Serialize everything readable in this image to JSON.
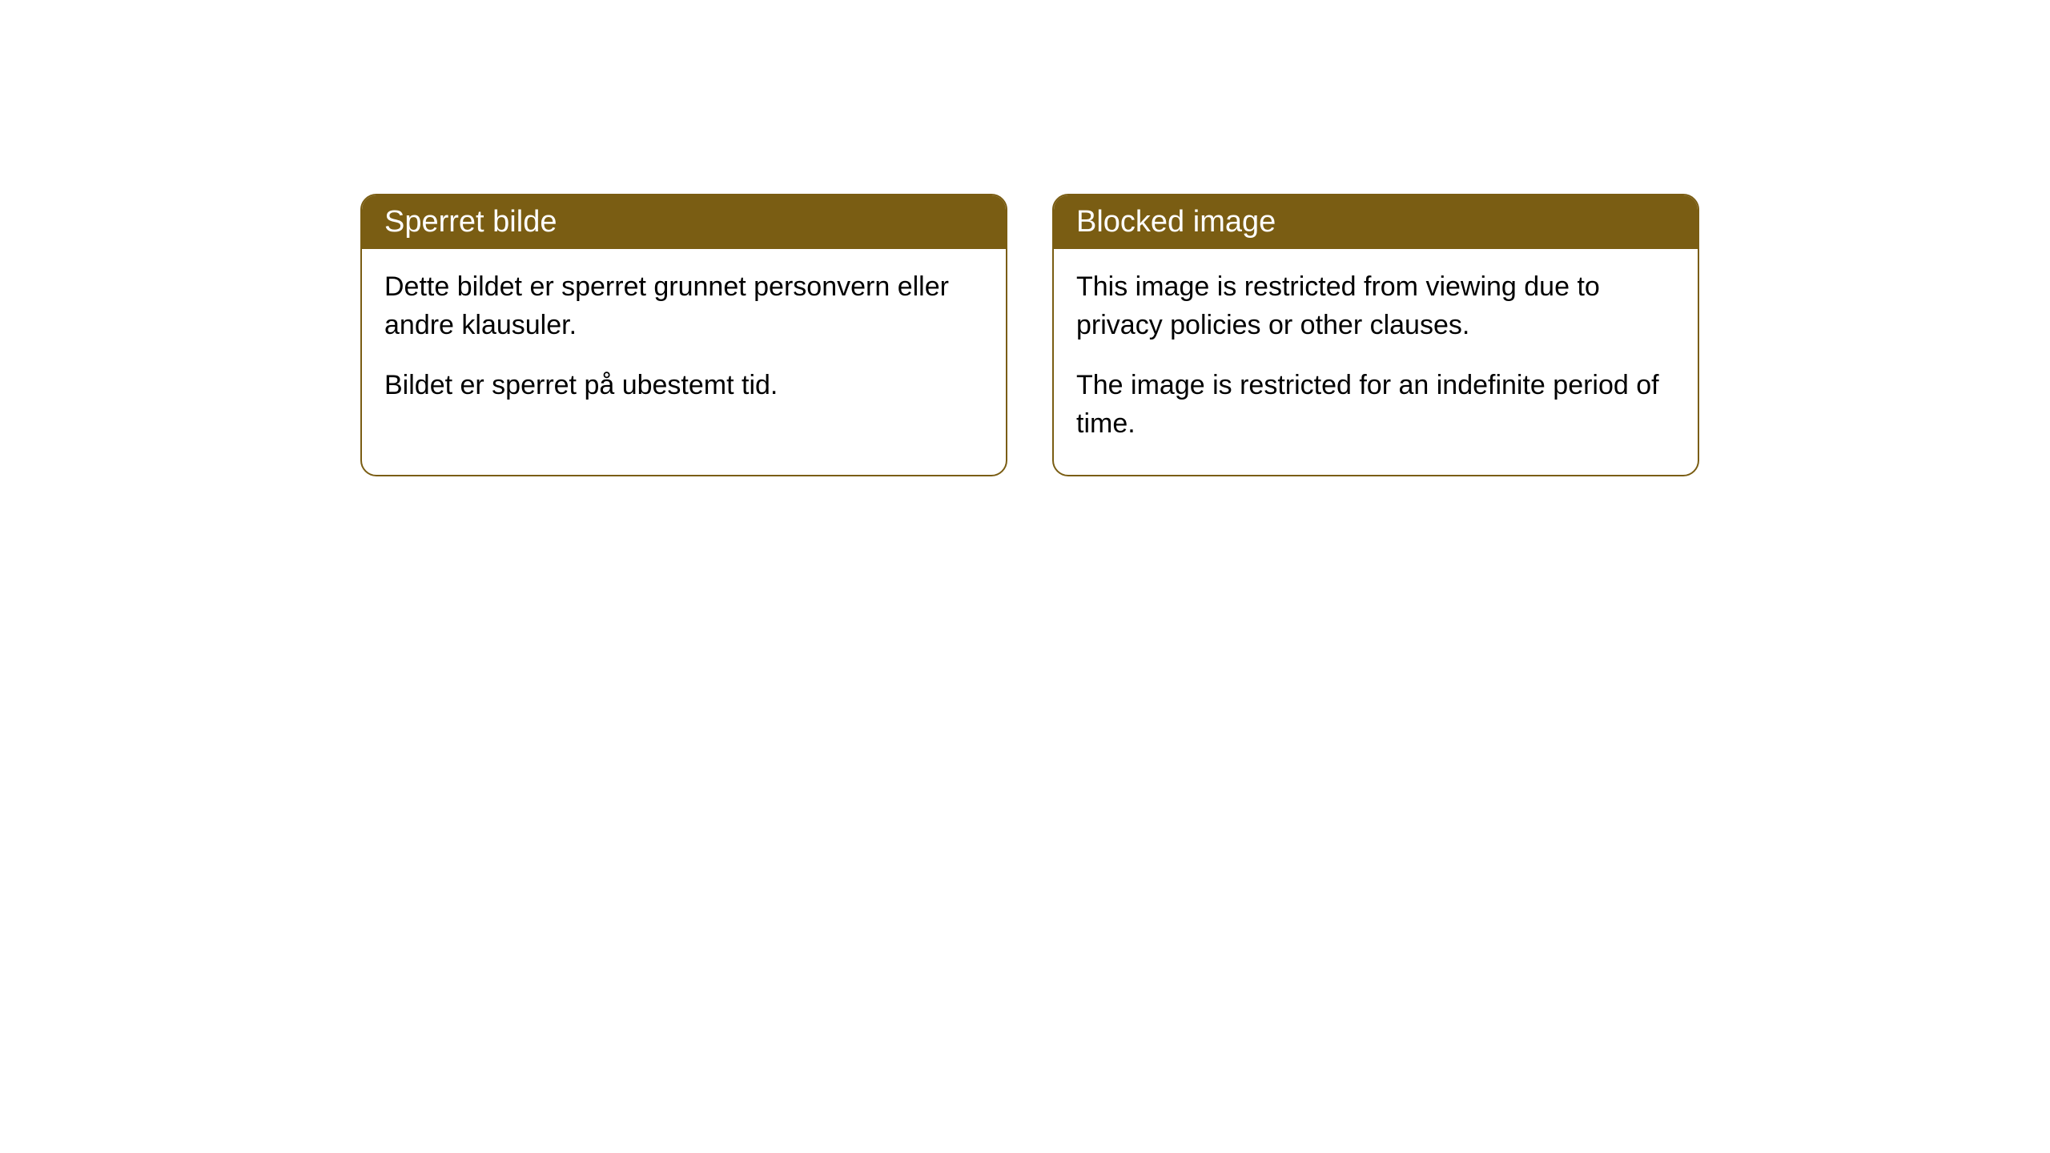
{
  "cards": [
    {
      "title": "Sperret bilde",
      "paragraph1": "Dette bildet er sperret grunnet personvern eller andre klausuler.",
      "paragraph2": "Bildet er sperret på ubestemt tid."
    },
    {
      "title": "Blocked image",
      "paragraph1": "This image is restricted from viewing due to privacy policies or other clauses.",
      "paragraph2": "The image is restricted for an indefinite period of time."
    }
  ],
  "style": {
    "header_bg": "#7a5d13",
    "header_color": "#ffffff",
    "border_color": "#7a5d13",
    "body_bg": "#ffffff",
    "body_text_color": "#000000",
    "border_radius": 20,
    "title_fontsize": 38,
    "body_fontsize": 34
  }
}
